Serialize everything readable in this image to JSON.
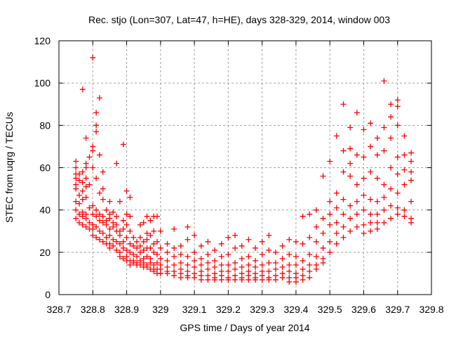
{
  "chart_data": {
    "type": "scatter",
    "title": "Rec. stjo (Lon=307, Lat=47, h=HE), days 328-329, 2014, window 003",
    "xlabel": "GPS time / Days of year 2014",
    "ylabel": "STEC from uqrg / TECUs",
    "xlim": [
      328.7,
      329.8
    ],
    "ylim": [
      0,
      120
    ],
    "xticks": [
      "328.7",
      "328.8",
      "328.9",
      "329",
      "329.1",
      "329.2",
      "329.3",
      "329.4",
      "329.5",
      "329.6",
      "329.7",
      "329.8"
    ],
    "yticks": [
      "0",
      "20",
      "40",
      "60",
      "80",
      "100",
      "120"
    ],
    "grid": true,
    "marker": "plus",
    "color": "#ff0000",
    "columns": [
      [
        328.75,
        [
          63,
          60,
          57,
          55,
          52,
          50,
          44,
          40,
          36
        ]
      ],
      [
        328.76,
        [
          57,
          54,
          47,
          43,
          38,
          34
        ]
      ],
      [
        328.77,
        [
          97,
          58,
          53,
          49,
          45,
          39,
          37,
          33
        ]
      ],
      [
        328.78,
        [
          74,
          62,
          60,
          55,
          51,
          46,
          38,
          36,
          32
        ]
      ],
      [
        328.79,
        [
          65,
          52,
          41,
          34,
          31
        ]
      ],
      [
        328.8,
        [
          112,
          70,
          68,
          60,
          42,
          38,
          33,
          31,
          28
        ]
      ],
      [
        328.81,
        [
          86,
          80,
          77,
          55,
          40,
          37,
          32,
          27
        ]
      ],
      [
        328.82,
        [
          93,
          66,
          48,
          38,
          35,
          30,
          26
        ]
      ],
      [
        328.83,
        [
          58,
          50,
          45,
          37,
          34,
          29,
          25
        ]
      ],
      [
        328.84,
        [
          40,
          35,
          33,
          27,
          24
        ]
      ],
      [
        328.85,
        [
          44,
          38,
          36,
          31,
          28,
          24,
          22
        ]
      ],
      [
        328.86,
        [
          39,
          34,
          32,
          26,
          23
        ]
      ],
      [
        328.87,
        [
          62,
          37,
          33,
          30,
          25,
          21
        ]
      ],
      [
        328.88,
        [
          44,
          30,
          28,
          24,
          20,
          18
        ]
      ],
      [
        328.89,
        [
          71,
          35,
          31,
          25,
          22,
          17
        ]
      ],
      [
        328.9,
        [
          49,
          38,
          33,
          27,
          21,
          18,
          16
        ]
      ],
      [
        328.91,
        [
          46,
          37,
          30,
          24,
          20,
          16,
          14
        ]
      ],
      [
        328.92,
        [
          27,
          23,
          19,
          16,
          15
        ]
      ],
      [
        328.93,
        [
          25,
          22,
          18,
          15,
          14
        ]
      ],
      [
        328.94,
        [
          33,
          27,
          23,
          20,
          16,
          14
        ]
      ],
      [
        328.95,
        [
          34,
          25,
          21,
          17,
          15,
          13
        ]
      ],
      [
        328.96,
        [
          37,
          29,
          26,
          22,
          18,
          14,
          13
        ]
      ],
      [
        328.97,
        [
          35,
          28,
          22,
          17,
          15,
          12
        ]
      ],
      [
        328.98,
        [
          37,
          30,
          24,
          20,
          14,
          12,
          11
        ]
      ],
      [
        328.99,
        [
          37,
          25,
          19,
          15,
          12,
          10
        ]
      ],
      [
        329.0,
        [
          30,
          22,
          17,
          14,
          12,
          10
        ]
      ],
      [
        329.02,
        [
          24,
          20,
          16,
          13,
          11,
          10
        ]
      ],
      [
        329.04,
        [
          31,
          22,
          18,
          14,
          11,
          9
        ]
      ],
      [
        329.06,
        [
          23,
          19,
          15,
          12,
          10,
          8
        ]
      ],
      [
        329.08,
        [
          32,
          26,
          18,
          14,
          11,
          9,
          8
        ]
      ],
      [
        329.1,
        [
          28,
          20,
          16,
          13,
          10,
          8
        ]
      ],
      [
        329.12,
        [
          23,
          17,
          14,
          11,
          9,
          7
        ]
      ],
      [
        329.14,
        [
          25,
          19,
          15,
          12,
          9,
          7
        ]
      ],
      [
        329.16,
        [
          21,
          16,
          13,
          10,
          8,
          7
        ]
      ],
      [
        329.18,
        [
          24,
          18,
          14,
          11,
          9,
          7
        ]
      ],
      [
        329.2,
        [
          27,
          19,
          14,
          11,
          8,
          7
        ]
      ],
      [
        329.22,
        [
          28,
          22,
          15,
          12,
          9,
          7
        ]
      ],
      [
        329.24,
        [
          23,
          17,
          13,
          10,
          8,
          7
        ]
      ],
      [
        329.26,
        [
          26,
          18,
          14,
          11,
          9,
          7
        ]
      ],
      [
        329.28,
        [
          22,
          16,
          13,
          10,
          8,
          7
        ]
      ],
      [
        329.3,
        [
          25,
          19,
          14,
          11,
          9,
          7
        ]
      ],
      [
        329.32,
        [
          28,
          21,
          15,
          11,
          8,
          7
        ]
      ],
      [
        329.34,
        [
          20,
          15,
          12,
          9,
          7
        ]
      ],
      [
        329.36,
        [
          23,
          17,
          13,
          10,
          8
        ]
      ],
      [
        329.38,
        [
          26,
          19,
          14,
          11,
          8,
          6
        ]
      ],
      [
        329.4,
        [
          25,
          18,
          14,
          10,
          8,
          6
        ]
      ],
      [
        329.42,
        [
          37,
          24,
          16,
          12,
          9,
          7
        ]
      ],
      [
        329.44,
        [
          38,
          27,
          19,
          14,
          11,
          8
        ]
      ],
      [
        329.46,
        [
          40,
          32,
          25,
          18,
          14,
          12
        ]
      ],
      [
        329.48,
        [
          56,
          36,
          29,
          22,
          17,
          15
        ]
      ],
      [
        329.5,
        [
          63,
          44,
          38,
          33,
          25,
          20
        ]
      ],
      [
        329.52,
        [
          75,
          48,
          41,
          34,
          29,
          24
        ]
      ],
      [
        329.54,
        [
          90,
          68,
          58,
          45,
          38,
          32,
          27
        ]
      ],
      [
        329.56,
        [
          79,
          69,
          62,
          56,
          42,
          36,
          30
        ]
      ],
      [
        329.58,
        [
          86,
          66,
          52,
          44,
          38,
          32
        ]
      ],
      [
        329.6,
        [
          78,
          65,
          55,
          47,
          40,
          33,
          29
        ]
      ],
      [
        329.62,
        [
          81,
          70,
          58,
          45,
          38,
          34,
          30
        ]
      ],
      [
        329.64,
        [
          74,
          66,
          55,
          44,
          38,
          34,
          31
        ]
      ],
      [
        329.66,
        [
          101,
          79,
          68,
          52,
          46,
          40,
          34
        ]
      ],
      [
        329.68,
        [
          90,
          84,
          74,
          60,
          50,
          42,
          36
        ]
      ],
      [
        329.7,
        [
          92,
          89,
          80,
          65,
          57,
          48,
          41,
          38
        ]
      ],
      [
        329.72,
        [
          75,
          66,
          59,
          52,
          40,
          37
        ]
      ],
      [
        329.74,
        [
          67,
          63,
          58,
          54,
          44,
          36,
          34
        ]
      ]
    ]
  }
}
